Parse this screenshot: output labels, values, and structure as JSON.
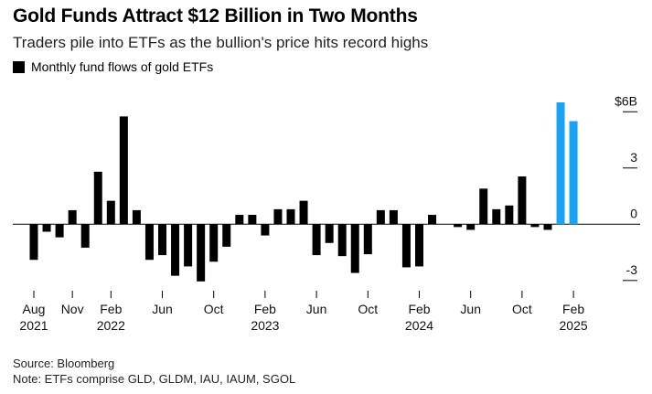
{
  "header": {
    "title": "Gold Funds Attract $12 Billion in Two Months",
    "subtitle": "Traders pile into ETFs as the bullion's price hits record highs"
  },
  "legend": {
    "label": "Monthly fund flows of gold ETFs"
  },
  "footer": {
    "source": "Source: Bloomberg",
    "note": "Note: ETFs comprise GLD, GLDM, IAU, IAUM, SGOL"
  },
  "colors": {
    "normal": "#000000",
    "highlight": "#1AA3F5",
    "axis": "#000000"
  },
  "chart_data": {
    "type": "bar",
    "title": "Monthly fund flows of gold ETFs",
    "ylabel": "",
    "xlabel": "",
    "ylim": [
      -3.4,
      6.5
    ],
    "y_ticks": [
      {
        "value": 6,
        "label": "$6B"
      },
      {
        "value": 3,
        "label": "3"
      },
      {
        "value": 0,
        "label": "0"
      },
      {
        "value": -3,
        "label": "-3"
      }
    ],
    "x_ticks": [
      {
        "index": 0,
        "month": "Aug",
        "year": "2021"
      },
      {
        "index": 3,
        "month": "Nov",
        "year": ""
      },
      {
        "index": 6,
        "month": "Feb",
        "year": "2022"
      },
      {
        "index": 10,
        "month": "Jun",
        "year": ""
      },
      {
        "index": 14,
        "month": "Oct",
        "year": ""
      },
      {
        "index": 18,
        "month": "Feb",
        "year": "2023"
      },
      {
        "index": 22,
        "month": "Jun",
        "year": ""
      },
      {
        "index": 26,
        "month": "Oct",
        "year": ""
      },
      {
        "index": 30,
        "month": "Feb",
        "year": "2024"
      },
      {
        "index": 34,
        "month": "Jun",
        "year": ""
      },
      {
        "index": 38,
        "month": "Oct",
        "year": ""
      },
      {
        "index": 42,
        "month": "Feb",
        "year": "2025"
      }
    ],
    "categories": [
      "Aug 2021",
      "Sep 2021",
      "Oct 2021",
      "Nov 2021",
      "Dec 2021",
      "Jan 2022",
      "Feb 2022",
      "Mar 2022",
      "Apr 2022",
      "May 2022",
      "Jun 2022",
      "Jul 2022",
      "Aug 2022",
      "Sep 2022",
      "Oct 2022",
      "Nov 2022",
      "Dec 2022",
      "Jan 2023",
      "Feb 2023",
      "Mar 2023",
      "Apr 2023",
      "May 2023",
      "Jun 2023",
      "Jul 2023",
      "Aug 2023",
      "Sep 2023",
      "Oct 2023",
      "Nov 2023",
      "Dec 2023",
      "Jan 2024",
      "Feb 2024",
      "Mar 2024",
      "Apr 2024",
      "May 2024",
      "Jun 2024",
      "Jul 2024",
      "Aug 2024",
      "Sep 2024",
      "Oct 2024",
      "Nov 2024",
      "Dec 2024",
      "Jan 2025",
      "Feb 2025"
    ],
    "values": [
      -1.9,
      -0.4,
      -0.7,
      0.75,
      -1.25,
      2.8,
      1.25,
      5.75,
      0.75,
      -1.9,
      -1.65,
      -2.75,
      -2.25,
      -3.05,
      -2.0,
      -1.2,
      0.5,
      0.5,
      -0.6,
      0.8,
      0.8,
      1.25,
      -1.65,
      -1.0,
      -1.7,
      -2.6,
      -1.6,
      0.75,
      0.75,
      -2.3,
      -2.25,
      0.5,
      0.0,
      -0.15,
      -0.3,
      1.9,
      0.8,
      1.0,
      2.55,
      -0.15,
      -0.3,
      6.5,
      5.5
    ],
    "highlight": [
      false,
      false,
      false,
      false,
      false,
      false,
      false,
      false,
      false,
      false,
      false,
      false,
      false,
      false,
      false,
      false,
      false,
      false,
      false,
      false,
      false,
      false,
      false,
      false,
      false,
      false,
      false,
      false,
      false,
      false,
      false,
      false,
      false,
      false,
      false,
      false,
      false,
      false,
      false,
      false,
      false,
      true,
      true
    ]
  }
}
